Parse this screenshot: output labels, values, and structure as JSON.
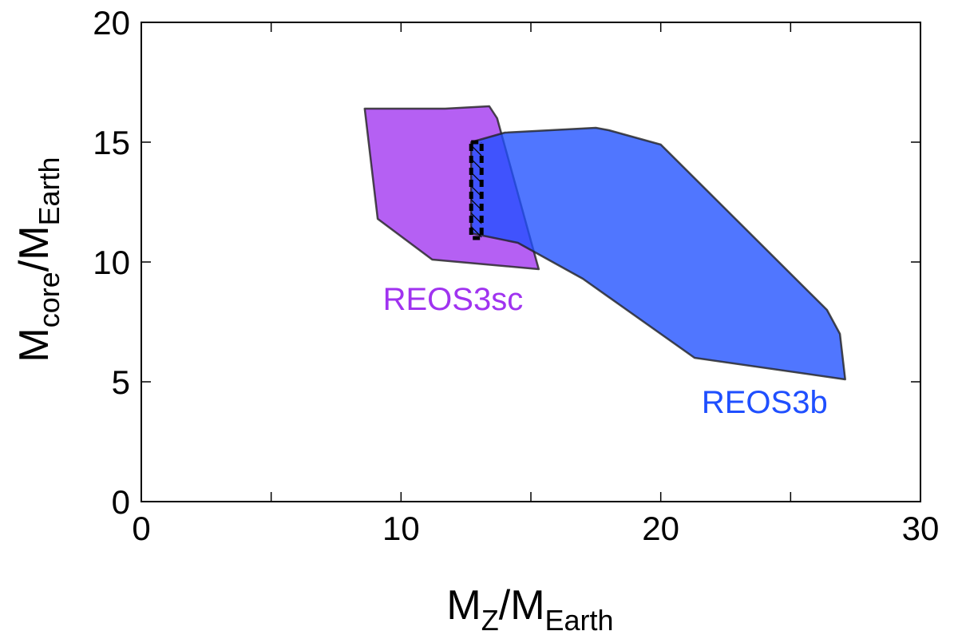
{
  "chart_data": {
    "type": "area",
    "title": "",
    "xlabel": {
      "main": "M",
      "sub1": "Z",
      "slash": "/M",
      "sub2": "Earth"
    },
    "ylabel": {
      "main": "M",
      "sub1": "core",
      "slash": "/M",
      "sub2": "Earth"
    },
    "xlim": [
      0,
      30
    ],
    "ylim": [
      0,
      20
    ],
    "xticks": [
      0,
      10,
      20,
      30
    ],
    "yticks": [
      0,
      5,
      10,
      15,
      20
    ],
    "xtick_labels": [
      "0",
      "10",
      "20",
      "30"
    ],
    "ytick_labels": [
      "0",
      "5",
      "10",
      "15",
      "20"
    ],
    "minor_xticks": [
      5,
      15,
      25
    ],
    "grid": false,
    "series": [
      {
        "name": "REOS3sc",
        "color": "#a033f0",
        "label_pos": [
          12,
          8
        ],
        "points": [
          [
            8.6,
            16.4
          ],
          [
            11.7,
            16.4
          ],
          [
            13.4,
            16.5
          ],
          [
            13.7,
            16.0
          ],
          [
            15.3,
            9.7
          ],
          [
            11.2,
            10.1
          ],
          [
            9.1,
            11.8
          ]
        ]
      },
      {
        "name": "REOS3b",
        "color": "#1f4fff",
        "label_pos": [
          24,
          3.7
        ],
        "points": [
          [
            12.7,
            15.0
          ],
          [
            14.0,
            15.4
          ],
          [
            17.5,
            15.6
          ],
          [
            18.0,
            15.5
          ],
          [
            20.0,
            14.9
          ],
          [
            26.4,
            8.0
          ],
          [
            26.9,
            7.0
          ],
          [
            27.1,
            5.1
          ],
          [
            21.3,
            6.0
          ],
          [
            17.0,
            9.3
          ],
          [
            14.5,
            10.8
          ],
          [
            12.7,
            11.2
          ]
        ]
      },
      {
        "name": "overlap",
        "color": "#000000",
        "style": "hatched-dashed",
        "points": [
          [
            12.7,
            15.0
          ],
          [
            13.1,
            15.0
          ],
          [
            13.1,
            11.0
          ],
          [
            12.7,
            11.0
          ]
        ]
      }
    ]
  }
}
